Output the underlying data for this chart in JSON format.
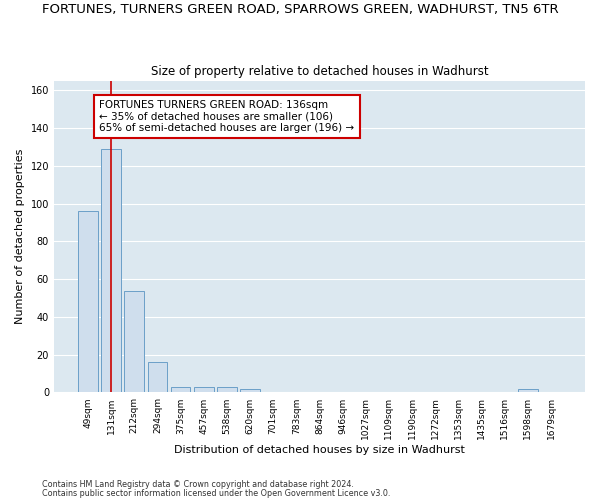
{
  "title": "FORTUNES, TURNERS GREEN ROAD, SPARROWS GREEN, WADHURST, TN5 6TR",
  "subtitle": "Size of property relative to detached houses in Wadhurst",
  "xlabel": "Distribution of detached houses by size in Wadhurst",
  "ylabel": "Number of detached properties",
  "footer1": "Contains HM Land Registry data © Crown copyright and database right 2024.",
  "footer2": "Contains public sector information licensed under the Open Government Licence v3.0.",
  "categories": [
    "49sqm",
    "131sqm",
    "212sqm",
    "294sqm",
    "375sqm",
    "457sqm",
    "538sqm",
    "620sqm",
    "701sqm",
    "783sqm",
    "864sqm",
    "946sqm",
    "1027sqm",
    "1109sqm",
    "1190sqm",
    "1272sqm",
    "1353sqm",
    "1435sqm",
    "1516sqm",
    "1598sqm",
    "1679sqm"
  ],
  "values": [
    96,
    129,
    54,
    16,
    3,
    3,
    3,
    2,
    0,
    0,
    0,
    0,
    0,
    0,
    0,
    0,
    0,
    0,
    0,
    2,
    0
  ],
  "bar_color": "#cfdeed",
  "bar_edge_color": "#6b9fc8",
  "property_line_x": 1,
  "property_line_color": "#cc0000",
  "annotation_line1": "FORTUNES TURNERS GREEN ROAD: 136sqm",
  "annotation_line2": "← 35% of detached houses are smaller (106)",
  "annotation_line3": "65% of semi-detached houses are larger (196) →",
  "annotation_box_color": "#cc0000",
  "ylim": [
    0,
    165
  ],
  "yticks": [
    0,
    20,
    40,
    60,
    80,
    100,
    120,
    140,
    160
  ],
  "background_color": "#dce8f0",
  "plot_bg_color": "#dce8f0",
  "grid_color": "#ffffff",
  "title_fontsize": 9.5,
  "subtitle_fontsize": 8.5,
  "ylabel_fontsize": 8,
  "xlabel_fontsize": 8,
  "tick_fontsize": 6.5,
  "footer_fontsize": 5.8
}
